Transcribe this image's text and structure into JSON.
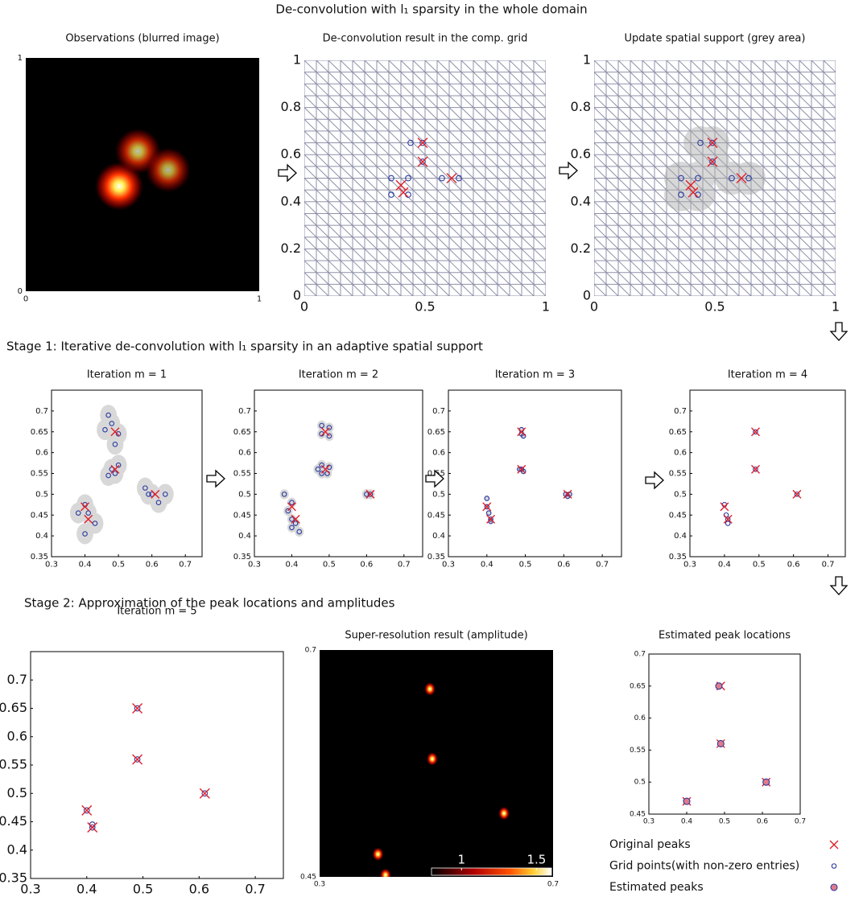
{
  "headings": {
    "main": "De-convolution with l₁ sparsity in the whole domain",
    "stage1": "Stage 1: Iterative de-convolution with l₁ sparsity in an adaptive spatial support",
    "stage2": "Stage 2: Approximation of the peak locations and amplitudes"
  },
  "chart_data": [
    {
      "type": "image",
      "title": "Observations (blurred image)",
      "xlim": [
        0,
        1
      ],
      "ylim": [
        0,
        1
      ],
      "xticks": [
        0,
        1
      ],
      "yticks": [
        0,
        1
      ],
      "x": [
        0.4,
        0.48,
        0.61
      ],
      "y": [
        0.45,
        0.6,
        0.52
      ],
      "values": [
        1,
        0.75,
        0.7
      ]
    },
    {
      "type": "scatter",
      "title": "De-convolution result in the comp. grid",
      "xlim": [
        0,
        1
      ],
      "ylim": [
        0,
        1
      ],
      "xticks": [
        0,
        0.5,
        1
      ],
      "yticks": [
        0,
        0.2,
        0.4,
        0.6,
        0.8,
        1
      ],
      "series": [
        {
          "marker": "circle",
          "color": "#2a3aa0",
          "x": [
            0.44,
            0.49,
            0.49,
            0.36,
            0.43,
            0.36,
            0.43,
            0.57,
            0.64
          ],
          "y": [
            0.65,
            0.65,
            0.57,
            0.5,
            0.5,
            0.43,
            0.43,
            0.5,
            0.5
          ]
        },
        {
          "marker": "x",
          "color": "#e0202a",
          "x": [
            0.49,
            0.49,
            0.4,
            0.41,
            0.61
          ],
          "y": [
            0.65,
            0.57,
            0.47,
            0.44,
            0.5
          ]
        }
      ]
    },
    {
      "type": "scatter",
      "title": "Update spatial support (grey area)",
      "xlim": [
        0,
        1
      ],
      "ylim": [
        0,
        1
      ],
      "xticks": [
        0,
        0.5,
        1
      ],
      "yticks": [
        0,
        0.2,
        0.4,
        0.6,
        0.8,
        1
      ],
      "series": [
        {
          "marker": "circle",
          "color": "#2a3aa0",
          "x": [
            0.44,
            0.49,
            0.49,
            0.36,
            0.43,
            0.36,
            0.43,
            0.57,
            0.64
          ],
          "y": [
            0.65,
            0.65,
            0.57,
            0.5,
            0.5,
            0.43,
            0.43,
            0.5,
            0.5
          ]
        },
        {
          "marker": "x",
          "color": "#e0202a",
          "x": [
            0.49,
            0.49,
            0.4,
            0.41,
            0.61
          ],
          "y": [
            0.65,
            0.57,
            0.47,
            0.44,
            0.5
          ]
        }
      ]
    },
    {
      "type": "scatter",
      "title": "Iteration m = 1",
      "xlim": [
        0.3,
        0.75
      ],
      "ylim": [
        0.35,
        0.75
      ],
      "xticks": [
        0.3,
        0.4,
        0.5,
        0.6,
        0.7
      ],
      "yticks": [
        0.35,
        0.4,
        0.45,
        0.5,
        0.55,
        0.6,
        0.65,
        0.7
      ],
      "series": [
        {
          "marker": "circle",
          "color": "#2a3aa0",
          "x": [
            0.47,
            0.48,
            0.46,
            0.5,
            0.49,
            0.5,
            0.49,
            0.48,
            0.47,
            0.58,
            0.59,
            0.6,
            0.64,
            0.62,
            0.4,
            0.38,
            0.41,
            0.43,
            0.4
          ],
          "y": [
            0.69,
            0.67,
            0.655,
            0.645,
            0.62,
            0.57,
            0.55,
            0.56,
            0.545,
            0.515,
            0.5,
            0.5,
            0.5,
            0.48,
            0.475,
            0.455,
            0.455,
            0.43,
            0.405
          ]
        },
        {
          "marker": "x",
          "color": "#e0202a",
          "x": [
            0.49,
            0.49,
            0.4,
            0.41,
            0.61
          ],
          "y": [
            0.65,
            0.56,
            0.47,
            0.44,
            0.5
          ]
        }
      ]
    },
    {
      "type": "scatter",
      "title": "Iteration m = 2",
      "xlim": [
        0.3,
        0.75
      ],
      "ylim": [
        0.35,
        0.75
      ],
      "xticks": [
        0.3,
        0.4,
        0.5,
        0.6,
        0.7
      ],
      "yticks": [
        0.35,
        0.4,
        0.45,
        0.5,
        0.55,
        0.6,
        0.65,
        0.7
      ],
      "series": [
        {
          "marker": "circle",
          "color": "#2a3aa0",
          "x": [
            0.48,
            0.5,
            0.48,
            0.5,
            0.48,
            0.5,
            0.48,
            0.495,
            0.47,
            0.6,
            0.61,
            0.38,
            0.4,
            0.39,
            0.4,
            0.41,
            0.4,
            0.42
          ],
          "y": [
            0.665,
            0.66,
            0.645,
            0.64,
            0.57,
            0.565,
            0.55,
            0.55,
            0.56,
            0.5,
            0.5,
            0.5,
            0.48,
            0.46,
            0.44,
            0.43,
            0.42,
            0.41
          ]
        },
        {
          "marker": "x",
          "color": "#e0202a",
          "x": [
            0.49,
            0.49,
            0.4,
            0.41,
            0.61
          ],
          "y": [
            0.65,
            0.56,
            0.47,
            0.44,
            0.5
          ]
        }
      ]
    },
    {
      "type": "scatter",
      "title": "Iteration m = 3",
      "xlim": [
        0.3,
        0.75
      ],
      "ylim": [
        0.35,
        0.75
      ],
      "xticks": [
        0.3,
        0.4,
        0.5,
        0.6,
        0.7
      ],
      "yticks": [
        0.35,
        0.4,
        0.45,
        0.5,
        0.55,
        0.6,
        0.65,
        0.7
      ],
      "series": [
        {
          "marker": "circle",
          "color": "#2a3aa0",
          "x": [
            0.49,
            0.49,
            0.495,
            0.49,
            0.495,
            0.485,
            0.605,
            0.61,
            0.615,
            0.4,
            0.4,
            0.405,
            0.41,
            0.41
          ],
          "y": [
            0.655,
            0.645,
            0.64,
            0.56,
            0.555,
            0.56,
            0.5,
            0.495,
            0.5,
            0.49,
            0.47,
            0.455,
            0.44,
            0.435
          ]
        },
        {
          "marker": "x",
          "color": "#e0202a",
          "x": [
            0.49,
            0.49,
            0.4,
            0.41,
            0.61
          ],
          "y": [
            0.65,
            0.56,
            0.47,
            0.44,
            0.5
          ]
        }
      ]
    },
    {
      "type": "scatter",
      "title": "Iteration m = 4",
      "xlim": [
        0.3,
        0.75
      ],
      "ylim": [
        0.35,
        0.75
      ],
      "xticks": [
        0.3,
        0.4,
        0.5,
        0.6,
        0.7
      ],
      "yticks": [
        0.35,
        0.4,
        0.45,
        0.5,
        0.55,
        0.6,
        0.65,
        0.7
      ],
      "series": [
        {
          "marker": "circle",
          "color": "#2a3aa0",
          "x": [
            0.49,
            0.49,
            0.61,
            0.4,
            0.405,
            0.41,
            0.41
          ],
          "y": [
            0.65,
            0.56,
            0.5,
            0.475,
            0.45,
            0.44,
            0.43
          ]
        },
        {
          "marker": "x",
          "color": "#e0202a",
          "x": [
            0.49,
            0.49,
            0.4,
            0.41,
            0.61
          ],
          "y": [
            0.65,
            0.56,
            0.47,
            0.44,
            0.5
          ]
        }
      ]
    },
    {
      "type": "scatter",
      "title": "Iteration m = 5",
      "xlim": [
        0.3,
        0.75
      ],
      "ylim": [
        0.35,
        0.75
      ],
      "xticks": [
        0.3,
        0.4,
        0.5,
        0.6,
        0.7
      ],
      "yticks": [
        0.35,
        0.4,
        0.45,
        0.5,
        0.55,
        0.6,
        0.65,
        0.7
      ],
      "series": [
        {
          "marker": "circle",
          "color": "#2a3aa0",
          "x": [
            0.49,
            0.49,
            0.61,
            0.4,
            0.41,
            0.41
          ],
          "y": [
            0.65,
            0.56,
            0.5,
            0.47,
            0.445,
            0.44
          ]
        },
        {
          "marker": "x",
          "color": "#e0202a",
          "x": [
            0.49,
            0.49,
            0.4,
            0.41,
            0.61
          ],
          "y": [
            0.65,
            0.56,
            0.47,
            0.44,
            0.5
          ]
        }
      ]
    },
    {
      "type": "image",
      "title": "Super-resolution result (amplitude)",
      "xlim": [
        0.3,
        0.7
      ],
      "ylim": [
        0.45,
        0.7
      ],
      "xticks": [
        0.3,
        0.7
      ],
      "yticks": [
        0.45,
        0.7
      ],
      "x": [
        0.489,
        0.493,
        0.616,
        0.4,
        0.413
      ],
      "y": [
        0.657,
        0.58,
        0.52,
        0.475,
        0.452
      ],
      "values": [
        1.1,
        1.1,
        1.05,
        1.1,
        1.3
      ],
      "colorbar": {
        "lim": [
          0.8,
          1.6
        ],
        "ticks": [
          1,
          1.5
        ]
      }
    },
    {
      "type": "scatter",
      "title": "Estimated peak locations",
      "xlim": [
        0.3,
        0.7
      ],
      "ylim": [
        0.45,
        0.7
      ],
      "xticks": [
        0.3,
        0.4,
        0.5,
        0.6,
        0.7
      ],
      "yticks": [
        0.45,
        0.5,
        0.55,
        0.6,
        0.65,
        0.7
      ],
      "series": [
        {
          "marker": "x",
          "color": "#e0202a",
          "x": [
            0.49,
            0.49,
            0.4,
            0.61
          ],
          "y": [
            0.65,
            0.56,
            0.47,
            0.5
          ]
        },
        {
          "marker": "filled",
          "color": "#2a3aa0",
          "fill": "#e07a8a",
          "x": [
            0.485,
            0.49,
            0.4,
            0.61
          ],
          "y": [
            0.65,
            0.56,
            0.47,
            0.5
          ]
        }
      ]
    }
  ],
  "legend": [
    {
      "name": "Original peaks",
      "marker": "x",
      "color": "#e0202a"
    },
    {
      "name": "Grid points(with non-zero entries)",
      "marker": "circle",
      "color": "#2a3aa0"
    },
    {
      "name": "Estimated peaks",
      "marker": "filled",
      "color": "#2a3aa0",
      "fill": "#e07a8a"
    }
  ]
}
